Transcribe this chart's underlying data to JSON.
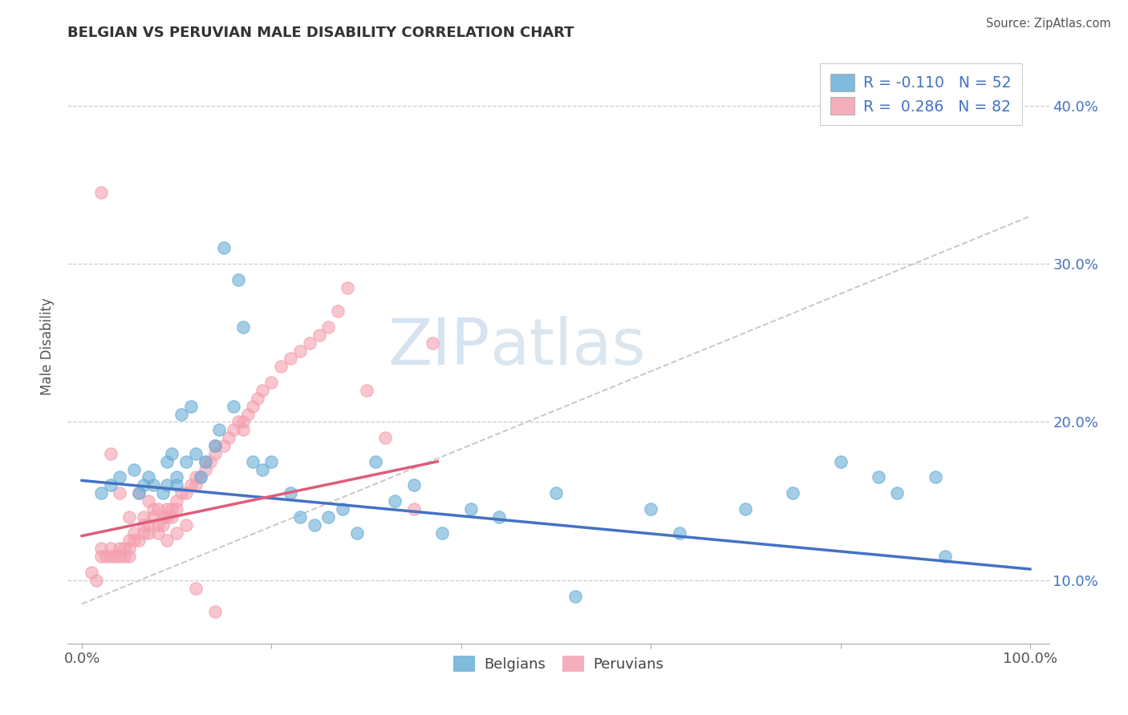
{
  "title": "BELGIAN VS PERUVIAN MALE DISABILITY CORRELATION CHART",
  "source": "Source: ZipAtlas.com",
  "ylabel": "Male Disability",
  "belgian_color": "#6aaed6",
  "peruvian_color": "#f4a0b0",
  "belgian_line_color": "#4472c4",
  "peruvian_line_color": "#e05c7a",
  "trend_line_color": "#c8c8c8",
  "watermark_color": "#c5d8ea",
  "R_belgian": -0.11,
  "N_belgian": 52,
  "R_peruvian": 0.286,
  "N_peruvian": 82,
  "belgians_x": [
    0.02,
    0.03,
    0.04,
    0.055,
    0.06,
    0.065,
    0.07,
    0.075,
    0.085,
    0.09,
    0.09,
    0.095,
    0.1,
    0.1,
    0.105,
    0.11,
    0.115,
    0.12,
    0.125,
    0.13,
    0.14,
    0.145,
    0.15,
    0.16,
    0.165,
    0.17,
    0.18,
    0.19,
    0.2,
    0.22,
    0.23,
    0.245,
    0.26,
    0.275,
    0.29,
    0.31,
    0.33,
    0.35,
    0.38,
    0.41,
    0.44,
    0.5,
    0.52,
    0.6,
    0.63,
    0.7,
    0.75,
    0.8,
    0.84,
    0.86,
    0.9,
    0.91
  ],
  "belgians_y": [
    0.155,
    0.16,
    0.165,
    0.17,
    0.155,
    0.16,
    0.165,
    0.16,
    0.155,
    0.16,
    0.175,
    0.18,
    0.165,
    0.16,
    0.205,
    0.175,
    0.21,
    0.18,
    0.165,
    0.175,
    0.185,
    0.195,
    0.31,
    0.21,
    0.29,
    0.26,
    0.175,
    0.17,
    0.175,
    0.155,
    0.14,
    0.135,
    0.14,
    0.145,
    0.13,
    0.175,
    0.15,
    0.16,
    0.13,
    0.145,
    0.14,
    0.155,
    0.09,
    0.145,
    0.13,
    0.145,
    0.155,
    0.175,
    0.165,
    0.155,
    0.165,
    0.115
  ],
  "peruvians_x": [
    0.01,
    0.015,
    0.02,
    0.02,
    0.025,
    0.03,
    0.03,
    0.035,
    0.04,
    0.04,
    0.045,
    0.045,
    0.05,
    0.05,
    0.05,
    0.055,
    0.055,
    0.06,
    0.065,
    0.065,
    0.065,
    0.07,
    0.07,
    0.075,
    0.075,
    0.08,
    0.08,
    0.085,
    0.085,
    0.09,
    0.09,
    0.095,
    0.095,
    0.1,
    0.1,
    0.105,
    0.11,
    0.115,
    0.12,
    0.12,
    0.125,
    0.13,
    0.13,
    0.135,
    0.14,
    0.14,
    0.15,
    0.155,
    0.16,
    0.165,
    0.17,
    0.17,
    0.175,
    0.18,
    0.185,
    0.19,
    0.2,
    0.21,
    0.22,
    0.23,
    0.24,
    0.25,
    0.26,
    0.27,
    0.28,
    0.3,
    0.32,
    0.35,
    0.37,
    0.02,
    0.03,
    0.04,
    0.05,
    0.06,
    0.07,
    0.08,
    0.09,
    0.1,
    0.11,
    0.12,
    0.14
  ],
  "peruvians_y": [
    0.105,
    0.1,
    0.115,
    0.12,
    0.115,
    0.12,
    0.115,
    0.115,
    0.115,
    0.12,
    0.115,
    0.12,
    0.115,
    0.12,
    0.125,
    0.125,
    0.13,
    0.125,
    0.13,
    0.135,
    0.14,
    0.13,
    0.135,
    0.14,
    0.145,
    0.13,
    0.135,
    0.135,
    0.14,
    0.14,
    0.145,
    0.14,
    0.145,
    0.145,
    0.15,
    0.155,
    0.155,
    0.16,
    0.16,
    0.165,
    0.165,
    0.17,
    0.175,
    0.175,
    0.18,
    0.185,
    0.185,
    0.19,
    0.195,
    0.2,
    0.195,
    0.2,
    0.205,
    0.21,
    0.215,
    0.22,
    0.225,
    0.235,
    0.24,
    0.245,
    0.25,
    0.255,
    0.26,
    0.27,
    0.285,
    0.22,
    0.19,
    0.145,
    0.25,
    0.345,
    0.18,
    0.155,
    0.14,
    0.155,
    0.15,
    0.145,
    0.125,
    0.13,
    0.135,
    0.095,
    0.08
  ],
  "belgian_line_x": [
    0.0,
    1.0
  ],
  "belgian_line_y": [
    0.163,
    0.107
  ],
  "peruvian_line_x": [
    0.0,
    0.375
  ],
  "peruvian_line_y": [
    0.128,
    0.175
  ],
  "trend_line_x": [
    0.0,
    1.0
  ],
  "trend_line_y": [
    0.085,
    0.33
  ],
  "yticks": [
    0.1,
    0.2,
    0.3,
    0.4
  ],
  "ytick_labels": [
    "10.0%",
    "20.0%",
    "30.0%",
    "40.0%"
  ],
  "xlim": [
    -0.015,
    1.02
  ],
  "ylim": [
    0.06,
    0.435
  ]
}
